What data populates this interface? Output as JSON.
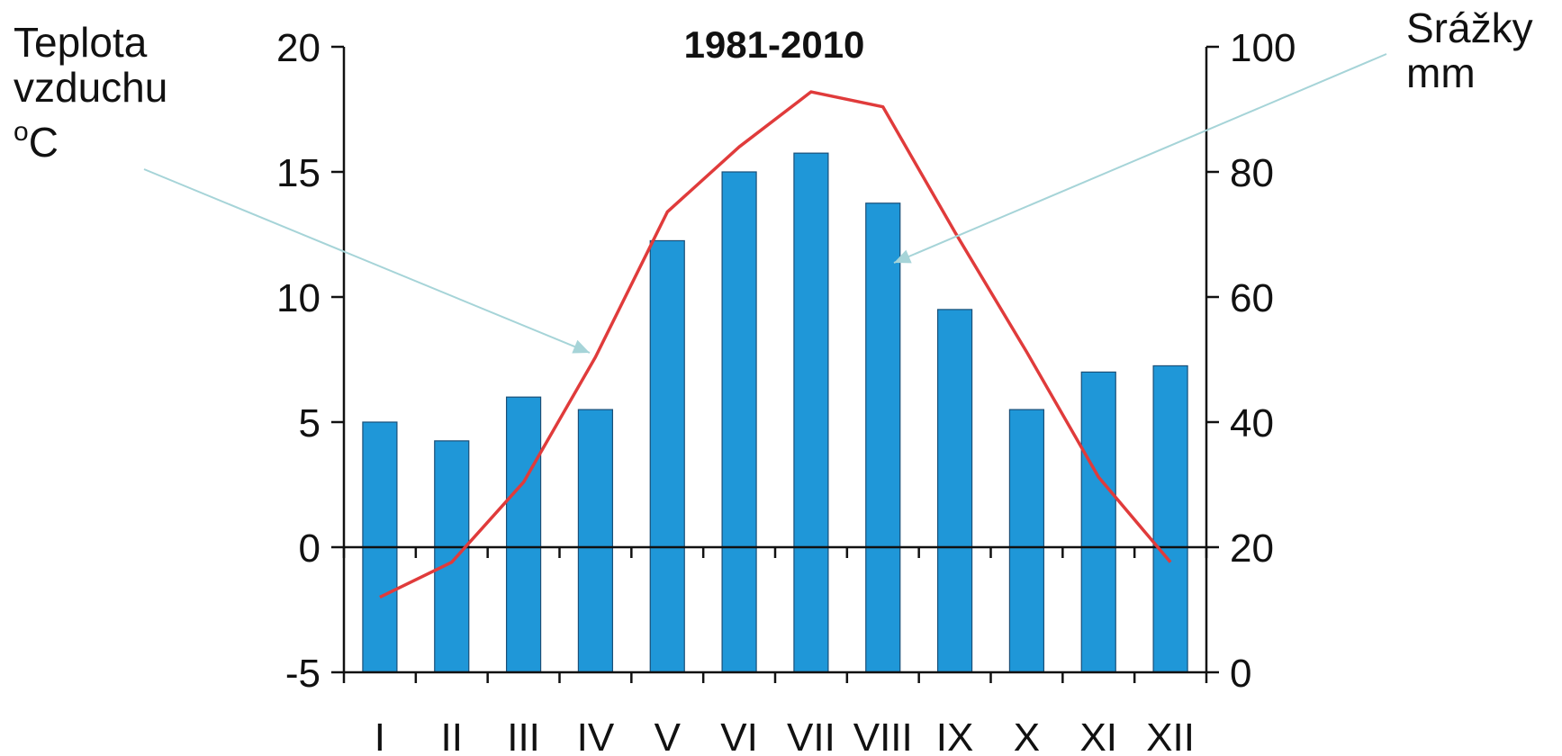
{
  "annotations": {
    "left": {
      "line1": "Teplota",
      "line2": "vzduchu",
      "deg": "o",
      "unit": "C"
    },
    "right": {
      "line1": "Srážky",
      "line2": "mm"
    }
  },
  "colors": {
    "bars": "#1f97d8",
    "line": "#e03b3b",
    "pointer": "#a6d4d8",
    "axis": "#111111"
  },
  "chart_data": {
    "type": "bar+line",
    "title": "1981-2010",
    "categories": [
      "I",
      "II",
      "III",
      "IV",
      "V",
      "VI",
      "VII",
      "VIII",
      "IX",
      "X",
      "XI",
      "XII"
    ],
    "series": [
      {
        "name": "Srážky mm",
        "type": "bar",
        "axis": "right",
        "values": [
          40,
          37,
          44,
          42,
          69,
          80,
          83,
          75,
          58,
          42,
          48,
          49
        ]
      },
      {
        "name": "Teplota vzduchu oC",
        "type": "line",
        "axis": "left",
        "values": [
          -2.0,
          -0.6,
          2.6,
          7.6,
          13.4,
          16.0,
          18.2,
          17.6,
          12.6,
          7.8,
          2.8,
          -0.6
        ]
      }
    ],
    "left_axis": {
      "ylim": [
        -5,
        20
      ],
      "ticks": [
        "20",
        "15",
        "10",
        "5",
        "0",
        "-5"
      ]
    },
    "right_axis": {
      "ylim": [
        0,
        100
      ],
      "ticks": [
        "100",
        "80",
        "60",
        "40",
        "20",
        "0"
      ]
    }
  }
}
